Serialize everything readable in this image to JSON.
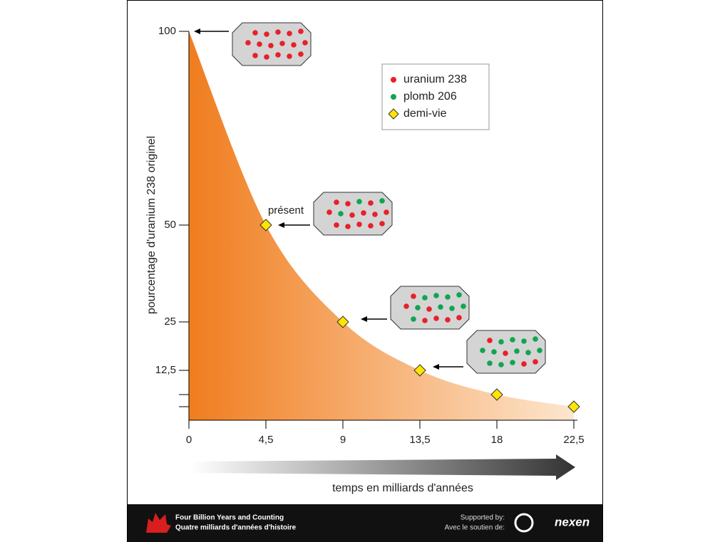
{
  "chart_data": {
    "type": "area",
    "x": [
      0,
      4.5,
      9,
      13.5,
      18,
      22.5
    ],
    "series": [
      {
        "values": [
          100,
          50,
          25,
          12.5,
          6.25,
          3.125
        ],
        "color": "#f07d1e"
      }
    ],
    "half_life": {
      "x": [
        4.5,
        9,
        13.5,
        18,
        22.5
      ],
      "values": [
        50,
        25,
        12.5,
        6.25,
        3.125
      ],
      "color": "#ffe500"
    },
    "xlim": [
      0,
      22.5
    ],
    "xticks": [
      0,
      {
        "value": 4.5,
        "label": "4,5"
      },
      9,
      {
        "value": 13.5,
        "label": "13,5"
      },
      18,
      {
        "value": 22.5,
        "label": "22,5"
      }
    ],
    "ylim": [
      0,
      100
    ],
    "yticks": [
      100,
      50,
      25,
      {
        "value": 12.5,
        "label": "12,5"
      },
      {
        "value": 6.25,
        "label": null
      },
      {
        "value": 3.125,
        "label": null
      }
    ],
    "ylabel": "pourcentage d'uranium 238 originel",
    "xlabel": "temps en milliards d'années",
    "annotation": "présent",
    "legend": [
      {
        "label": "uranium 238",
        "color": "#e8202a",
        "marker": "circle"
      },
      {
        "label": "plomb 206",
        "color": "#10a550",
        "marker": "circle"
      },
      {
        "label": "demi-vie",
        "color": "#ffe500",
        "marker": "diamond"
      }
    ]
  },
  "footer": {
    "title": "Four Billion Years and Counting",
    "subtitle": "Quatre milliards d'années d'histoire",
    "supported": "Supported by:",
    "soutien": "Avec le soutien de:",
    "sponsor": "nexen"
  }
}
